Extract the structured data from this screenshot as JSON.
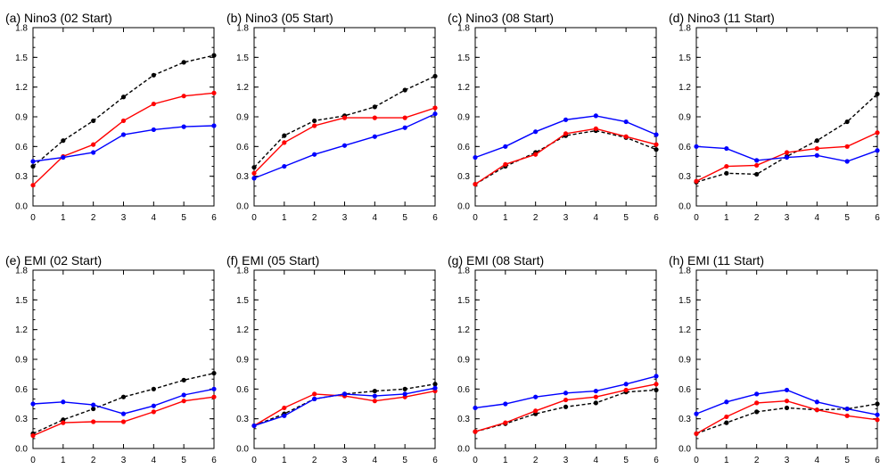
{
  "chart_data": [
    {
      "type": "line",
      "title": "(a) Nino3 (02 Start)",
      "x": [
        0,
        1,
        2,
        3,
        4,
        5,
        6
      ],
      "ylim": [
        0,
        1.8
      ],
      "yticks": [
        "0.0",
        "0.3",
        "0.6",
        "0.9",
        "1.2",
        "1.5",
        "1.8"
      ],
      "series": [
        {
          "color": "#000000",
          "dashed": true,
          "values": [
            0.4,
            0.66,
            0.86,
            1.1,
            1.32,
            1.45,
            1.52
          ]
        },
        {
          "color": "#ff0000",
          "dashed": false,
          "values": [
            0.21,
            0.5,
            0.62,
            0.86,
            1.03,
            1.11,
            1.14
          ]
        },
        {
          "color": "#0000ff",
          "dashed": false,
          "values": [
            0.45,
            0.49,
            0.54,
            0.72,
            0.77,
            0.8,
            0.81
          ]
        }
      ]
    },
    {
      "type": "line",
      "title": "(b) Nino3 (05 Start)",
      "x": [
        0,
        1,
        2,
        3,
        4,
        5,
        6
      ],
      "ylim": [
        0,
        1.8
      ],
      "yticks": [
        "0.0",
        "0.3",
        "0.6",
        "0.9",
        "1.2",
        "1.5",
        "1.8"
      ],
      "series": [
        {
          "color": "#000000",
          "dashed": true,
          "values": [
            0.39,
            0.71,
            0.86,
            0.91,
            1.0,
            1.17,
            1.31
          ]
        },
        {
          "color": "#ff0000",
          "dashed": false,
          "values": [
            0.33,
            0.64,
            0.81,
            0.89,
            0.89,
            0.89,
            0.99
          ]
        },
        {
          "color": "#0000ff",
          "dashed": false,
          "values": [
            0.28,
            0.4,
            0.52,
            0.61,
            0.7,
            0.79,
            0.93
          ]
        }
      ]
    },
    {
      "type": "line",
      "title": "(c) Nino3 (08 Start)",
      "x": [
        0,
        1,
        2,
        3,
        4,
        5,
        6
      ],
      "ylim": [
        0,
        1.8
      ],
      "yticks": [
        "0.0",
        "0.3",
        "0.6",
        "0.9",
        "1.2",
        "1.5",
        "1.8"
      ],
      "series": [
        {
          "color": "#000000",
          "dashed": true,
          "values": [
            0.22,
            0.4,
            0.54,
            0.71,
            0.76,
            0.69,
            0.57
          ]
        },
        {
          "color": "#ff0000",
          "dashed": false,
          "values": [
            0.22,
            0.42,
            0.52,
            0.73,
            0.78,
            0.7,
            0.62
          ]
        },
        {
          "color": "#0000ff",
          "dashed": false,
          "values": [
            0.49,
            0.6,
            0.75,
            0.87,
            0.91,
            0.85,
            0.72
          ]
        }
      ]
    },
    {
      "type": "line",
      "title": "(d) Nino3 (11 Start)",
      "x": [
        0,
        1,
        2,
        3,
        4,
        5,
        6
      ],
      "ylim": [
        0,
        1.8
      ],
      "yticks": [
        "0.0",
        "0.3",
        "0.6",
        "0.9",
        "1.2",
        "1.5",
        "1.8"
      ],
      "series": [
        {
          "color": "#000000",
          "dashed": true,
          "values": [
            0.24,
            0.33,
            0.32,
            0.5,
            0.66,
            0.85,
            1.13
          ]
        },
        {
          "color": "#ff0000",
          "dashed": false,
          "values": [
            0.25,
            0.4,
            0.41,
            0.54,
            0.58,
            0.6,
            0.74
          ]
        },
        {
          "color": "#0000ff",
          "dashed": false,
          "values": [
            0.6,
            0.58,
            0.46,
            0.49,
            0.51,
            0.45,
            0.56
          ]
        }
      ]
    },
    {
      "type": "line",
      "title": "(e) EMI (02 Start)",
      "x": [
        0,
        1,
        2,
        3,
        4,
        5,
        6
      ],
      "ylim": [
        0,
        1.8
      ],
      "yticks": [
        "0.0",
        "0.3",
        "0.6",
        "0.9",
        "1.2",
        "1.5",
        "1.8"
      ],
      "series": [
        {
          "color": "#000000",
          "dashed": true,
          "values": [
            0.15,
            0.29,
            0.4,
            0.52,
            0.6,
            0.69,
            0.76
          ]
        },
        {
          "color": "#ff0000",
          "dashed": false,
          "values": [
            0.13,
            0.26,
            0.27,
            0.27,
            0.37,
            0.48,
            0.52
          ]
        },
        {
          "color": "#0000ff",
          "dashed": false,
          "values": [
            0.45,
            0.47,
            0.44,
            0.35,
            0.43,
            0.54,
            0.6
          ]
        }
      ]
    },
    {
      "type": "line",
      "title": "(f) EMI (05 Start)",
      "x": [
        0,
        1,
        2,
        3,
        4,
        5,
        6
      ],
      "ylim": [
        0,
        1.8
      ],
      "yticks": [
        "0.0",
        "0.3",
        "0.6",
        "0.9",
        "1.2",
        "1.5",
        "1.8"
      ],
      "series": [
        {
          "color": "#000000",
          "dashed": true,
          "values": [
            0.23,
            0.35,
            0.5,
            0.55,
            0.58,
            0.6,
            0.65
          ]
        },
        {
          "color": "#ff0000",
          "dashed": false,
          "values": [
            0.23,
            0.41,
            0.55,
            0.53,
            0.48,
            0.52,
            0.58
          ]
        },
        {
          "color": "#0000ff",
          "dashed": false,
          "values": [
            0.23,
            0.33,
            0.5,
            0.55,
            0.53,
            0.55,
            0.61
          ]
        }
      ]
    },
    {
      "type": "line",
      "title": "(g) EMI (08 Start)",
      "x": [
        0,
        1,
        2,
        3,
        4,
        5,
        6
      ],
      "ylim": [
        0,
        1.8
      ],
      "yticks": [
        "0.0",
        "0.3",
        "0.6",
        "0.9",
        "1.2",
        "1.5",
        "1.8"
      ],
      "series": [
        {
          "color": "#000000",
          "dashed": true,
          "values": [
            0.17,
            0.25,
            0.35,
            0.42,
            0.46,
            0.57,
            0.59
          ]
        },
        {
          "color": "#ff0000",
          "dashed": false,
          "values": [
            0.17,
            0.26,
            0.38,
            0.49,
            0.52,
            0.59,
            0.65
          ]
        },
        {
          "color": "#0000ff",
          "dashed": false,
          "values": [
            0.41,
            0.45,
            0.52,
            0.56,
            0.58,
            0.65,
            0.73
          ]
        }
      ]
    },
    {
      "type": "line",
      "title": "(h) EMI (11 Start)",
      "x": [
        0,
        1,
        2,
        3,
        4,
        5,
        6
      ],
      "ylim": [
        0,
        1.8
      ],
      "yticks": [
        "0.0",
        "0.3",
        "0.6",
        "0.9",
        "1.2",
        "1.5",
        "1.8"
      ],
      "series": [
        {
          "color": "#000000",
          "dashed": true,
          "values": [
            0.15,
            0.26,
            0.37,
            0.41,
            0.39,
            0.4,
            0.45
          ]
        },
        {
          "color": "#ff0000",
          "dashed": false,
          "values": [
            0.15,
            0.32,
            0.46,
            0.48,
            0.39,
            0.33,
            0.29
          ]
        },
        {
          "color": "#0000ff",
          "dashed": false,
          "values": [
            0.35,
            0.47,
            0.55,
            0.59,
            0.47,
            0.4,
            0.34
          ]
        }
      ]
    }
  ]
}
